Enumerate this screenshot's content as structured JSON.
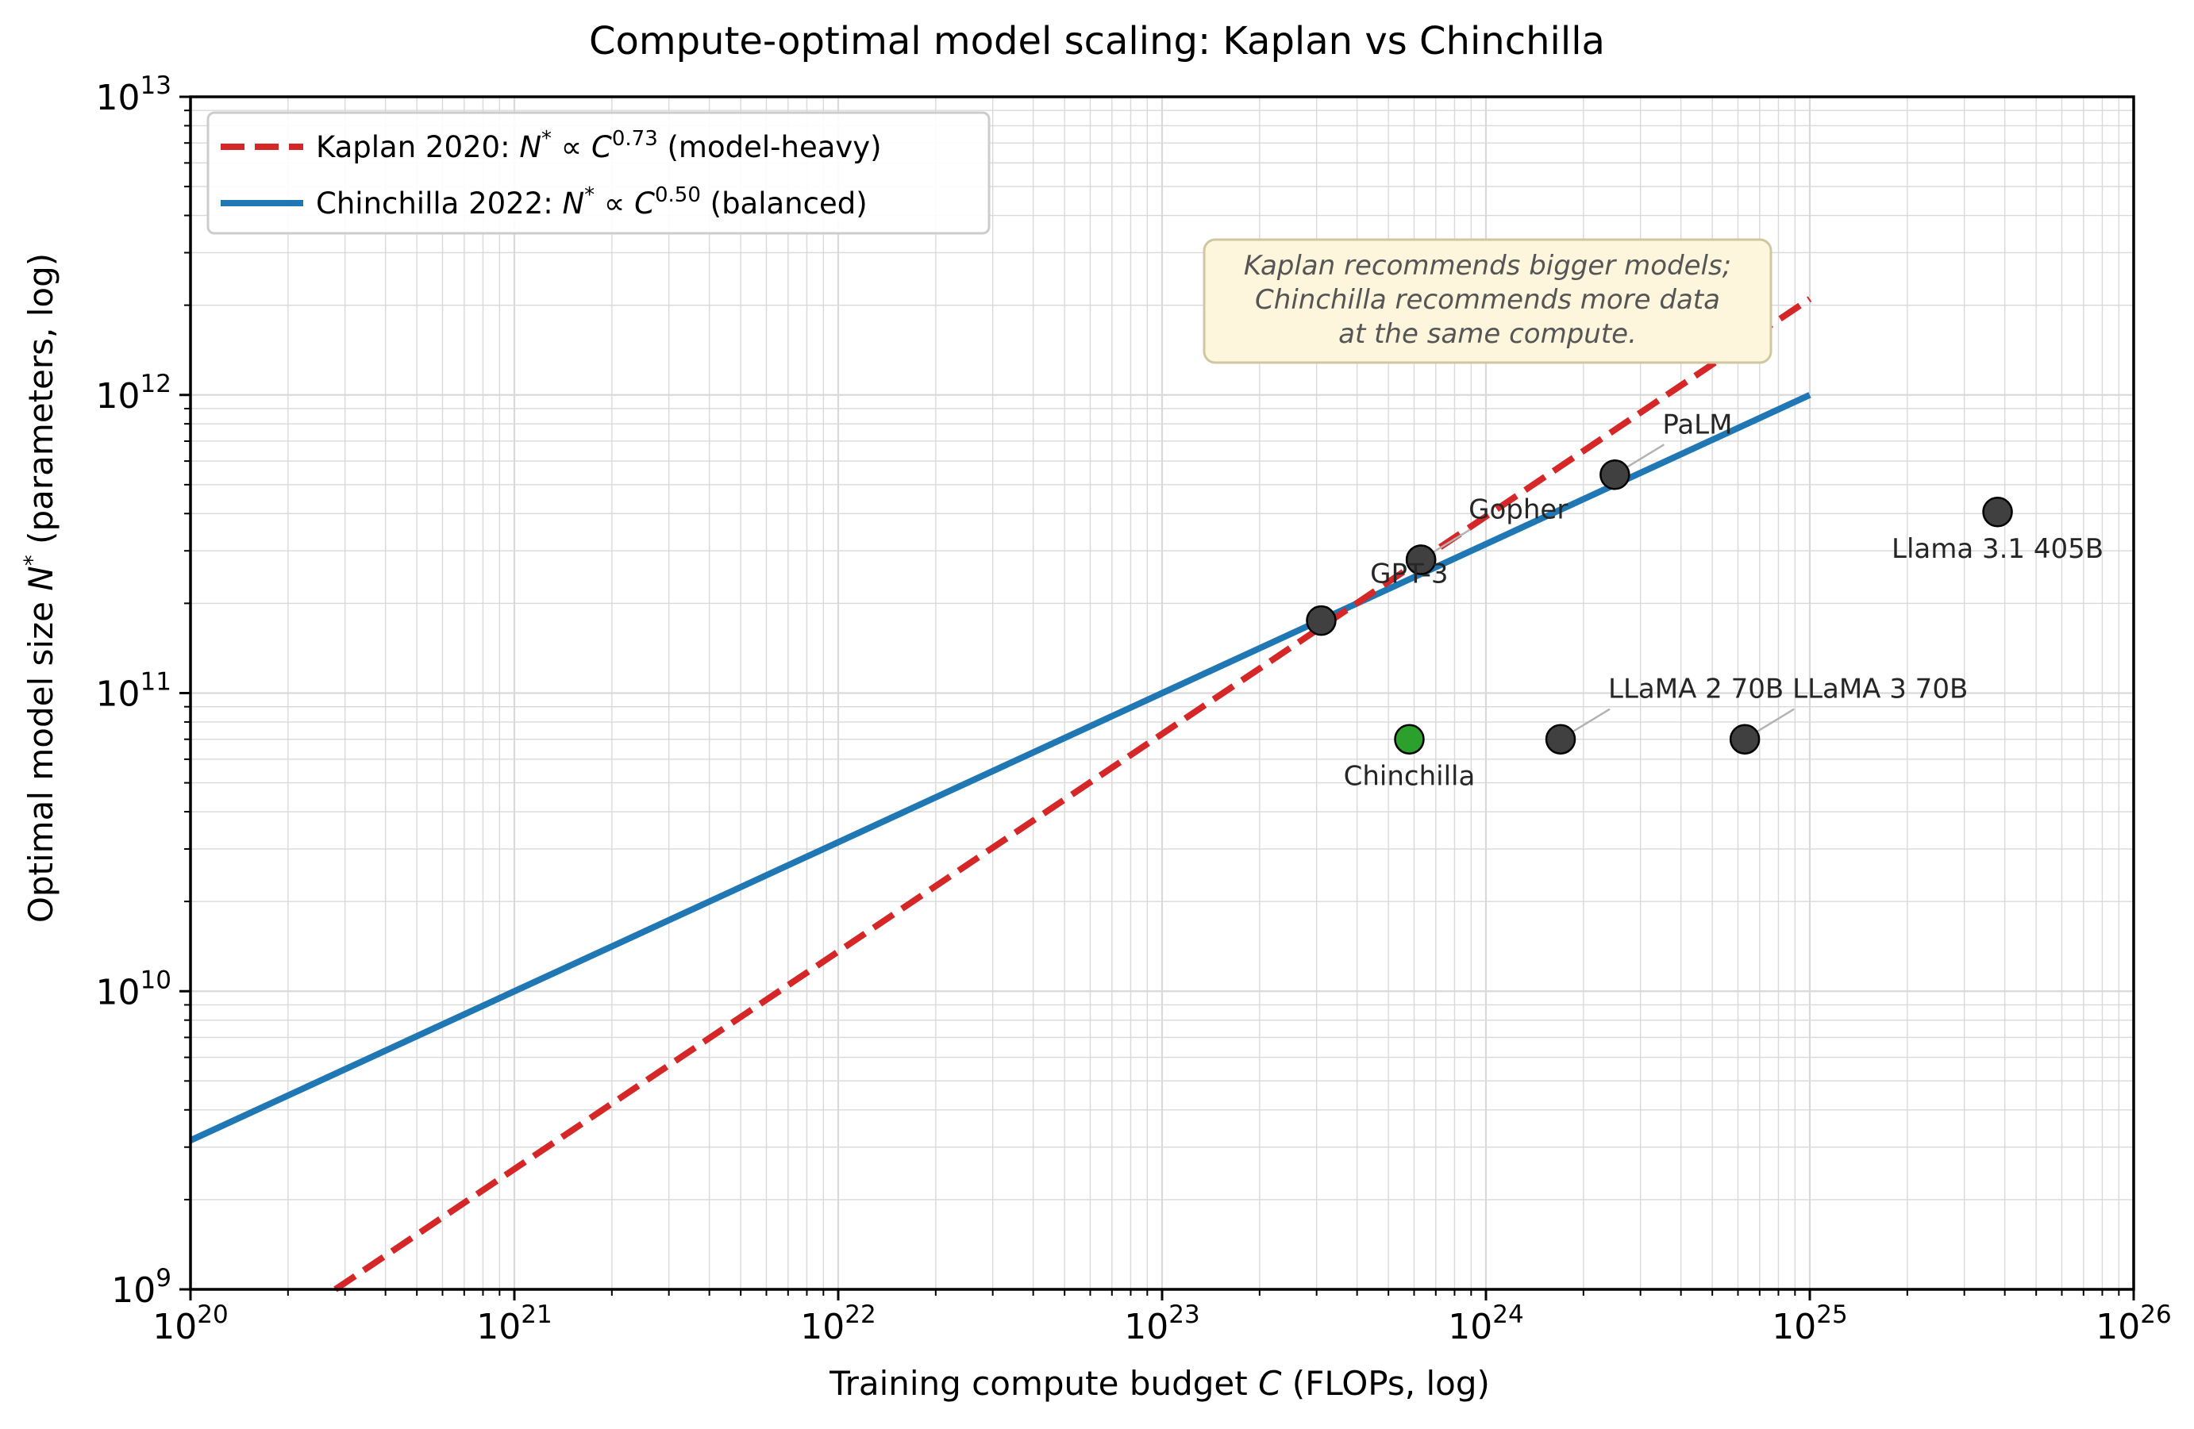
{
  "chart_data": {
    "type": "scatter",
    "title": "Compute-optimal model scaling: Kaplan vs Chinchilla",
    "xlabel": {
      "prefix": "Training compute budget",
      "sym": "C",
      "suffix": "(FLOPs, log)"
    },
    "ylabel": {
      "prefix": "Optimal model size",
      "sym": "N",
      "sup": "*",
      "suffix": "(parameters, log)"
    },
    "xscale": "log",
    "yscale": "log",
    "xlim": [
      1e+20,
      1e+26
    ],
    "ylim": [
      1000000000.0,
      10000000000000.0
    ],
    "x_ticks": [
      20,
      21,
      22,
      23,
      24,
      25,
      26
    ],
    "y_ticks": [
      9,
      10,
      11,
      12,
      13
    ],
    "tick_base": "10",
    "grid": true,
    "legend_position": "top-left",
    "series": [
      {
        "name": "Kaplan 2020",
        "formula_lhs": "N",
        "formula_sup": "*",
        "formula_op": "∝",
        "formula_rhs": "C",
        "exponent": "0.73",
        "note": "(model-heavy)",
        "style": "dashed",
        "color": "#d62728",
        "line": {
          "x": [
            2.8e+20,
            1e+25
          ],
          "y": [
            1000000000.0,
            2100000000000.0
          ]
        }
      },
      {
        "name": "Chinchilla 2022",
        "formula_lhs": "N",
        "formula_sup": "*",
        "formula_op": "∝",
        "formula_rhs": "C",
        "exponent": "0.50",
        "note": "(balanced)",
        "style": "solid",
        "color": "#1f77b4",
        "line": {
          "x": [
            1e+20,
            1e+25
          ],
          "y": [
            3160000000.0,
            1000000000000.0
          ]
        }
      }
    ],
    "points": [
      {
        "label": "",
        "x": 3.1e+23,
        "y": 175000000000.0,
        "color": "#404040"
      },
      {
        "label": "GPT-3",
        "x": 6.3e+23,
        "y": 280000000000.0,
        "color": "#404040",
        "label_pos": "below-left"
      },
      {
        "label": "Gopher",
        "x": 6.3e+23,
        "y": 280000000000.0,
        "color": "#404040",
        "label_pos": "upper-right",
        "leader": true
      },
      {
        "label": "Chinchilla",
        "x": 5.8e+23,
        "y": 70000000000.0,
        "color": "#2ca02c",
        "label_pos": "below"
      },
      {
        "label": "PaLM",
        "x": 2.5e+24,
        "y": 540000000000.0,
        "color": "#404040",
        "label_pos": "upper-right",
        "leader": true
      },
      {
        "label": "LLaMA 2 70B",
        "x": 1.7e+24,
        "y": 70000000000.0,
        "color": "#404040",
        "label_pos": "upper-right",
        "leader": true
      },
      {
        "label": "LLaMA 3 70B",
        "x": 6.3e+24,
        "y": 70000000000.0,
        "color": "#404040",
        "label_pos": "upper-right",
        "leader": true
      },
      {
        "label": "Llama 3.1 405B",
        "x": 3.8e+25,
        "y": 405000000000.0,
        "color": "#404040",
        "label_pos": "below"
      }
    ],
    "annotation": {
      "lines": [
        "Kaplan recommends bigger models;",
        "Chinchilla recommends more data",
        "at the same compute."
      ],
      "box_fill": "#fdf6dc",
      "box_stroke": "#cfc7a0"
    }
  }
}
